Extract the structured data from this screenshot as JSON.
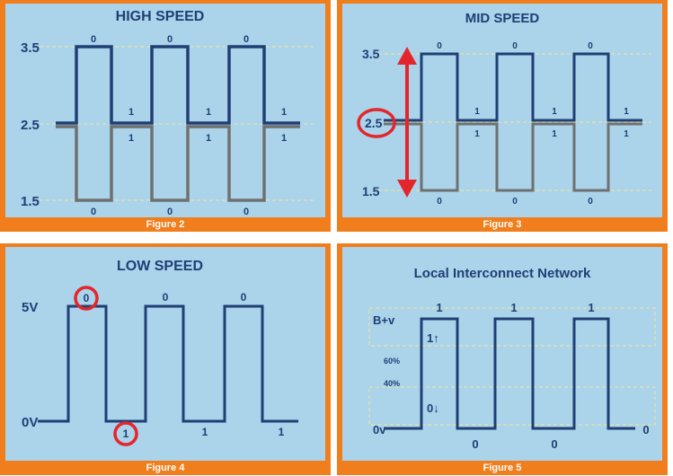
{
  "panels": {
    "high": {
      "title": "HIGH SPEED",
      "levels": {
        "top": "3.5",
        "mid": "2.5",
        "bottom": "1.5"
      },
      "bit_top": "0",
      "bit_bottom": "0",
      "bit_one": "1",
      "caption": "Figure 2"
    },
    "mid": {
      "title": "MID SPEED",
      "levels": {
        "top": "3.5",
        "mid": "2.5",
        "bottom": "1.5"
      },
      "bit_top": "0",
      "bit_bottom": "0",
      "bit_one": "1",
      "caption": "Figure 3"
    },
    "low": {
      "title": "LOW SPEED",
      "levels": {
        "top": "5V",
        "bottom": "0V"
      },
      "bit_zero": "0",
      "bit_one": "1",
      "caption": "Figure 4"
    },
    "lin": {
      "title": "Local Interconnect Network",
      "levels": {
        "top": "B+v",
        "bottom": "0v"
      },
      "threshold_high": "60%",
      "threshold_low": "40%",
      "bit_one": "1",
      "bit_zero": "0",
      "one_arrow": "1↑",
      "zero_arrow": "0↓",
      "caption": "Figure 5"
    }
  },
  "colors": {
    "signal_dark": "#1f3f75",
    "signal_grey": "#6f7170",
    "highlight_red": "#e4262c",
    "guide_yellow": "#f2e79a",
    "frame_orange": "#f07e1c",
    "scene_blue": "#abd3ea"
  }
}
